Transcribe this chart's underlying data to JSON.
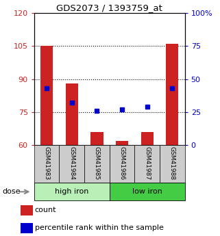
{
  "title": "GDS2073 / 1393759_at",
  "samples": [
    "GSM41983",
    "GSM41984",
    "GSM41985",
    "GSM41986",
    "GSM41987",
    "GSM41988"
  ],
  "count_values": [
    105,
    88,
    66,
    62,
    66,
    106
  ],
  "percentile_values": [
    43,
    32,
    26,
    27,
    29,
    43
  ],
  "count_base": 60,
  "ylim_left": [
    60,
    120
  ],
  "ylim_right": [
    0,
    100
  ],
  "yticks_left": [
    60,
    75,
    90,
    105,
    120
  ],
  "yticks_right": [
    0,
    25,
    50,
    75,
    100
  ],
  "ytick_labels_left": [
    "60",
    "75",
    "90",
    "105",
    "120"
  ],
  "ytick_labels_right": [
    "0",
    "25",
    "50",
    "75",
    "100%"
  ],
  "hlines": [
    75,
    90,
    105
  ],
  "groups": [
    {
      "label": "high iron",
      "samples": [
        0,
        1,
        2
      ],
      "color": "#b8f0b8"
    },
    {
      "label": "low iron",
      "samples": [
        3,
        4,
        5
      ],
      "color": "#44cc44"
    }
  ],
  "bar_color": "#cc2222",
  "dot_color": "#0000cc",
  "bar_width": 0.5,
  "xlabel_area_color": "#cccccc",
  "dose_label": "dose",
  "legend_count": "count",
  "legend_percentile": "percentile rank within the sample",
  "left_tick_color": "#cc2222",
  "right_tick_color": "#0000cc"
}
